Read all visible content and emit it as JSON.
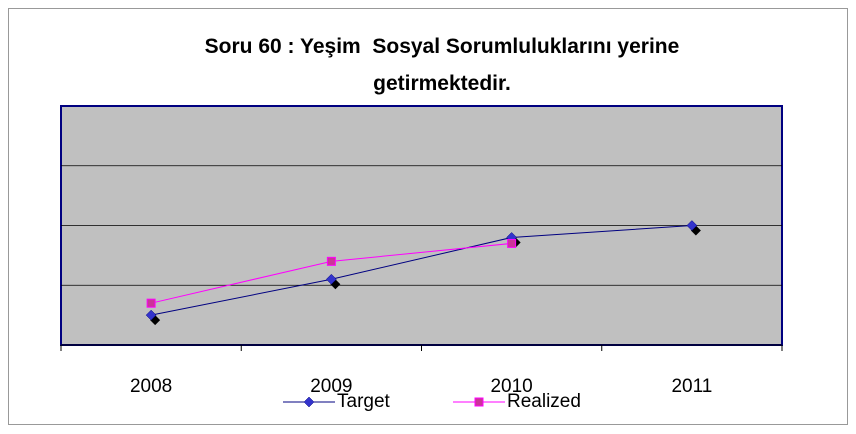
{
  "chart_data": {
    "type": "line",
    "title": "Soru 60 : Yeşim  Sosyal Sorumluluklarını yerine getirmektedir.",
    "categories": [
      "2008",
      "2009",
      "2010",
      "2011"
    ],
    "series": [
      {
        "name": "Target",
        "color": "#000080",
        "marker_color": "#3333cc",
        "values": [
          0.5,
          1.1,
          1.8,
          2.0
        ]
      },
      {
        "name": "Realized",
        "color": "#ff00ff",
        "marker_color": "#cc3399",
        "values": [
          0.7,
          1.4,
          1.7,
          null
        ]
      }
    ],
    "ylim": [
      0,
      4
    ],
    "yticks": [
      0,
      1,
      2,
      3,
      4
    ],
    "grid": true,
    "legend": "bottom"
  }
}
